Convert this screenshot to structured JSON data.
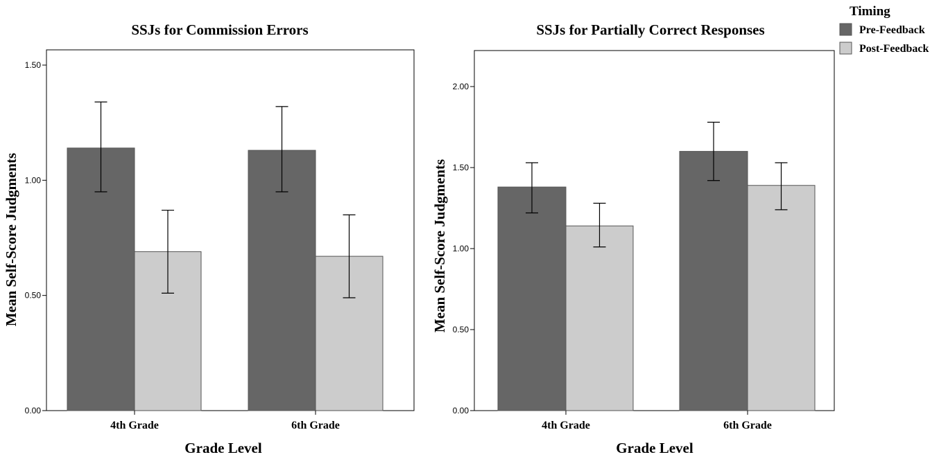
{
  "legend": {
    "title": "Timing",
    "items": [
      {
        "label": "Pre-Feedback",
        "color": "#666666"
      },
      {
        "label": "Post-Feedback",
        "color": "#cccccc"
      }
    ]
  },
  "chart_data": [
    {
      "type": "bar",
      "title": "SSJs for Commission Errors",
      "xlabel": "Grade Level",
      "ylabel": "Mean Self-Score Judgments",
      "categories": [
        "4th Grade",
        "6th Grade"
      ],
      "ylim": [
        0,
        1.5
      ],
      "yticks": [
        "0.00",
        "0.50",
        "1.00",
        "1.50"
      ],
      "series": [
        {
          "name": "Pre-Feedback",
          "values": [
            1.14,
            1.13
          ],
          "error_low": [
            0.95,
            0.95
          ],
          "error_high": [
            1.34,
            1.32
          ]
        },
        {
          "name": "Post-Feedback",
          "values": [
            0.69,
            0.67
          ],
          "error_low": [
            0.51,
            0.49
          ],
          "error_high": [
            0.87,
            0.85
          ]
        }
      ]
    },
    {
      "type": "bar",
      "title": "SSJs for Partially Correct Responses",
      "xlabel": "Grade Level",
      "ylabel": "Mean Self-Score Judgments",
      "categories": [
        "4th Grade",
        "6th Grade"
      ],
      "ylim": [
        0,
        2.0
      ],
      "yticks": [
        "0.00",
        "0.50",
        "1.00",
        "1.50",
        "2.00"
      ],
      "series": [
        {
          "name": "Pre-Feedback",
          "values": [
            1.38,
            1.6
          ],
          "error_low": [
            1.22,
            1.42
          ],
          "error_high": [
            1.53,
            1.78
          ]
        },
        {
          "name": "Post-Feedback",
          "values": [
            1.14,
            1.39
          ],
          "error_low": [
            1.01,
            1.24
          ],
          "error_high": [
            1.28,
            1.53
          ]
        }
      ]
    }
  ]
}
